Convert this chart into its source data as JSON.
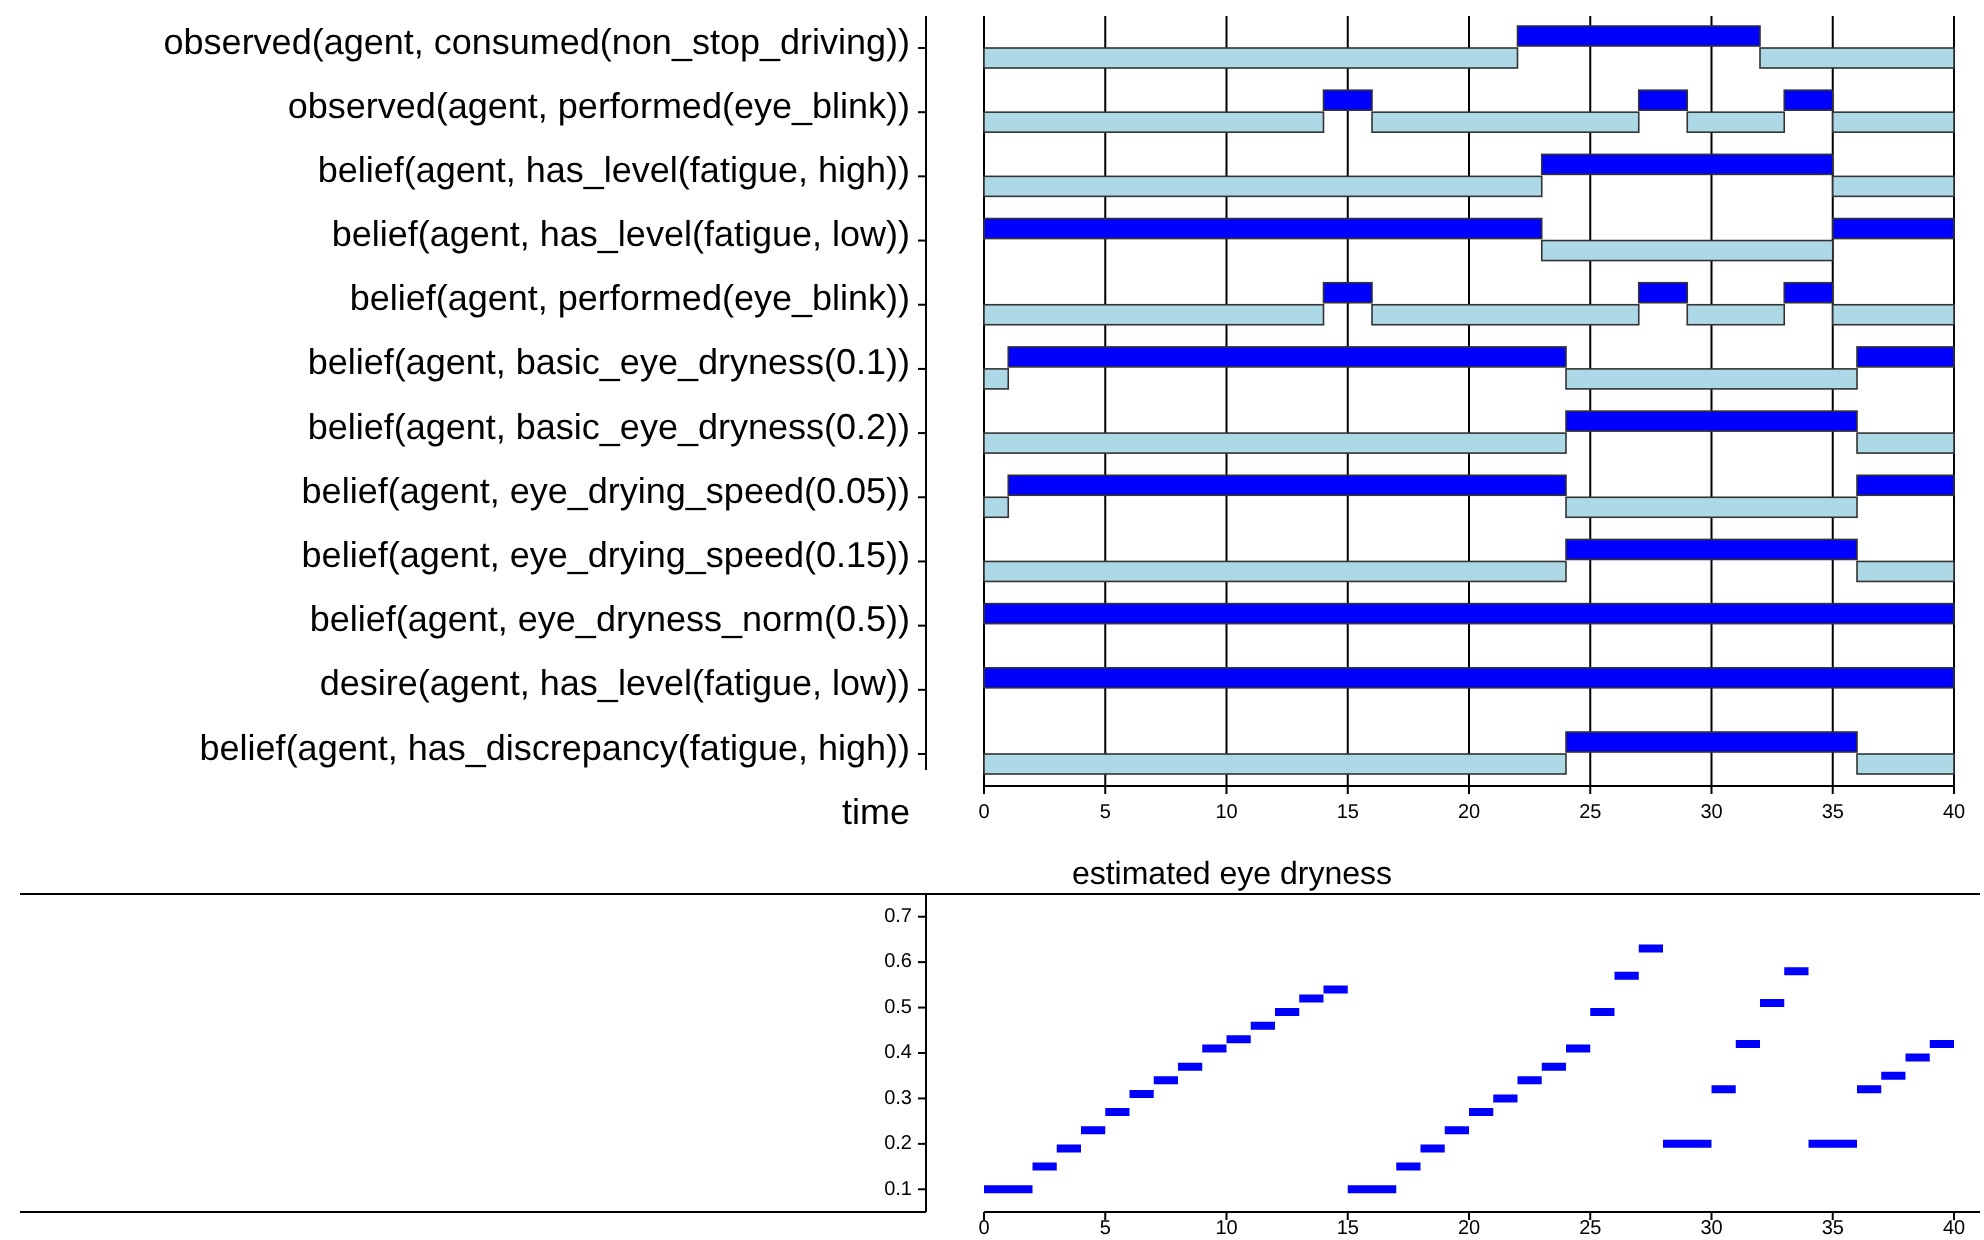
{
  "chart_data": [
    {
      "type": "bar",
      "orientation": "horizontal",
      "stacked": true,
      "xlabel": "time",
      "grid": "x",
      "categories": [
        "observed(agent, consumed(non_stop_driving))",
        "observed(agent, performed(eye_blink))",
        "belief(agent, has_level(fatigue, high))",
        "belief(agent, has_level(fatigue, low))",
        "belief(agent, performed(eye_blink))",
        "belief(agent, basic_eye_dryness(0.1))",
        "belief(agent, basic_eye_dryness(0.2))",
        "belief(agent, eye_drying_speed(0.05))",
        "belief(agent, eye_drying_speed(0.15))",
        "belief(agent, eye_dryness_norm(0.5))",
        "desire(agent, has_level(fatigue, low))",
        "belief(agent, has_discrepancy(fatigue, high))"
      ],
      "series": [
        {
          "values": [
            22,
            14,
            23,
            23,
            14,
            1,
            24,
            1,
            24,
            40,
            40,
            24
          ],
          "colors": [
            "#add8e6",
            "#add8e6",
            "#add8e6",
            "#0000ff",
            "#add8e6",
            "#add8e6",
            "#add8e6",
            "#add8e6",
            "#add8e6",
            "#0000ff",
            "#0000ff",
            "#add8e6"
          ]
        },
        {
          "values": [
            10,
            2,
            12,
            12,
            2,
            23,
            12,
            23,
            12,
            null,
            null,
            12
          ],
          "colors": [
            "#0000ff",
            "#0000ff",
            "#0000ff",
            "#add8e6",
            "#0000ff",
            "#0000ff",
            "#0000ff",
            "#0000ff",
            "#0000ff",
            null,
            null,
            "#0000ff"
          ]
        },
        {
          "values": [
            8,
            11,
            5,
            5,
            11,
            12,
            4,
            12,
            4,
            null,
            null,
            4
          ],
          "colors": [
            "#add8e6",
            "#add8e6",
            "#add8e6",
            "#0000ff",
            "#add8e6",
            "#add8e6",
            "#add8e6",
            "#add8e6",
            "#add8e6",
            null,
            null,
            "#add8e6"
          ]
        },
        {
          "values": [
            null,
            2,
            null,
            null,
            2,
            4,
            null,
            4,
            null,
            null,
            null,
            null
          ],
          "colors": [
            null,
            "#0000ff",
            null,
            null,
            "#0000ff",
            "#0000ff",
            null,
            "#0000ff",
            null,
            null,
            null,
            null
          ]
        },
        {
          "values": [
            null,
            4,
            null,
            null,
            4,
            null,
            null,
            null,
            null,
            null,
            null,
            null
          ],
          "colors": [
            null,
            "#add8e6",
            null,
            null,
            "#add8e6",
            null,
            null,
            null,
            null,
            null,
            null,
            null
          ]
        },
        {
          "values": [
            null,
            2,
            null,
            null,
            2,
            null,
            null,
            null,
            null,
            null,
            null,
            null
          ],
          "colors": [
            null,
            "#0000ff",
            null,
            null,
            "#0000ff",
            null,
            null,
            null,
            null,
            null,
            null,
            null
          ]
        },
        {
          "values": [
            null,
            5,
            null,
            null,
            5,
            null,
            null,
            null,
            null,
            null,
            null,
            null
          ],
          "colors": [
            null,
            "#add8e6",
            null,
            null,
            "#add8e6",
            null,
            null,
            null,
            null,
            null,
            null,
            null
          ]
        }
      ],
      "xlim": [
        0,
        40
      ],
      "xticks": [
        0,
        5,
        10,
        15,
        20,
        25,
        30,
        35,
        40
      ]
    },
    {
      "type": "step",
      "title": "estimated eye dryness",
      "series": [
        {
          "color": "#0000ff",
          "x": [
            0,
            2,
            3,
            4,
            5,
            6,
            7,
            8,
            9,
            10,
            11,
            12,
            13,
            14,
            15,
            17,
            18,
            19,
            20,
            21,
            22,
            23,
            24,
            25,
            26,
            27,
            28,
            30,
            31,
            32,
            33,
            34,
            36,
            37,
            38,
            39,
            40
          ],
          "values": [
            0.1,
            0.15,
            0.19,
            0.23,
            0.27,
            0.31,
            0.34,
            0.37,
            0.41,
            0.43,
            0.46,
            0.49,
            0.52,
            0.54,
            0.1,
            0.15,
            0.19,
            0.23,
            0.27,
            0.3,
            0.34,
            0.37,
            0.41,
            0.49,
            0.57,
            0.63,
            0.2,
            0.32,
            0.42,
            0.51,
            0.58,
            0.2,
            0.32,
            0.35,
            0.39,
            0.42,
            0.42
          ]
        }
      ],
      "xlim": [
        0,
        40
      ],
      "xticks": [
        0,
        5,
        10,
        15,
        20,
        25,
        30,
        35,
        40
      ],
      "ylim": [
        0.05,
        0.75
      ],
      "yticks": [
        0.1,
        0.2,
        0.3,
        0.4,
        0.5,
        0.6,
        0.7
      ]
    }
  ]
}
